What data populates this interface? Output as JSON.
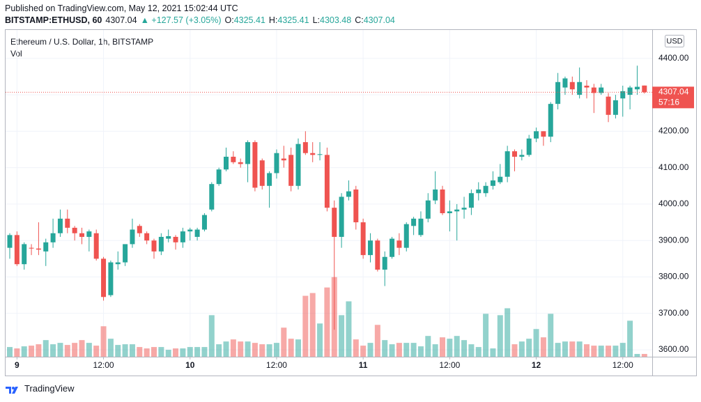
{
  "header": {
    "published": "Published on TradingView.com, May 12, 2021 15:02:44 UTC",
    "symbol": "BITSTAMP:ETHUSD, 60",
    "last": "4307.04",
    "change": "▲ +127.57 (+3.05%)",
    "ohlc": [
      {
        "label": "O:",
        "value": "4325.41"
      },
      {
        "label": "H:",
        "value": "4325.41"
      },
      {
        "label": "L:",
        "value": "4303.48"
      },
      {
        "label": "C:",
        "value": "4307.04"
      }
    ]
  },
  "chart_data": {
    "type": "candlestick",
    "title": "Ethereum / U.S. Dollar, 1h, BITSTAMP",
    "volume_label": "Vol",
    "currency": "USD",
    "price_label": "4307.04",
    "countdown": "57:16",
    "up_color": "#26a69a",
    "down_color": "#ef5350",
    "grid": true,
    "categories": [
      null,
      "9",
      null,
      null,
      null,
      null,
      null,
      null,
      null,
      null,
      null,
      null,
      null,
      "12:00",
      null,
      null,
      null,
      null,
      null,
      null,
      null,
      null,
      null,
      null,
      null,
      "10",
      null,
      null,
      null,
      null,
      null,
      null,
      null,
      null,
      null,
      null,
      null,
      "12:00",
      null,
      null,
      null,
      null,
      null,
      null,
      null,
      null,
      null,
      null,
      null,
      "11",
      null,
      null,
      null,
      null,
      null,
      null,
      null,
      null,
      null,
      null,
      null,
      "12:00",
      null,
      null,
      null,
      null,
      null,
      null,
      null,
      null,
      null,
      null,
      null,
      "12",
      null,
      null,
      null,
      null,
      null,
      null,
      null,
      null,
      null,
      null,
      null,
      "12:00",
      null,
      null,
      null
    ],
    "open": [
      3880,
      3915,
      3835,
      3880,
      3878,
      3870,
      3895,
      3920,
      3960,
      3935,
      3920,
      3910,
      3920,
      3850,
      3750,
      3835,
      3840,
      3890,
      3940,
      3920,
      3900,
      3870,
      3905,
      3910,
      3895,
      3925,
      3910,
      3930,
      3985,
      4055,
      4095,
      4130,
      4115,
      4110,
      4170,
      4120,
      4050,
      4085,
      4125,
      4135,
      4050,
      4170,
      4140,
      4135,
      4135,
      3990,
      3910,
      4020,
      4040,
      3950,
      3860,
      3900,
      3820,
      3855,
      3900,
      3880,
      3940,
      3915,
      3960,
      4010,
      4040,
      3975,
      3980,
      3985,
      3990,
      4030,
      4030,
      4050,
      4060,
      4075,
      4145,
      4130,
      4135,
      4180,
      4200,
      4185,
      4275,
      4320,
      4335,
      4300,
      4325,
      4320,
      4305,
      4295,
      4245,
      4290,
      4300,
      4315,
      4325.41
    ],
    "high": [
      3920,
      3925,
      3895,
      3890,
      3950,
      3905,
      3960,
      3985,
      3985,
      3940,
      3935,
      3930,
      3930,
      3855,
      3845,
      3870,
      3890,
      3960,
      3945,
      3925,
      3905,
      3920,
      3930,
      3915,
      3935,
      3935,
      3935,
      3975,
      4060,
      4100,
      4155,
      4145,
      4125,
      4175,
      4175,
      4125,
      4090,
      4150,
      4160,
      4155,
      4180,
      4200,
      4170,
      4170,
      4155,
      4010,
      4030,
      4065,
      4050,
      3960,
      3920,
      3905,
      3870,
      3910,
      3920,
      3950,
      3965,
      3980,
      4030,
      4090,
      4050,
      4010,
      4000,
      4020,
      4040,
      4060,
      4060,
      4090,
      4110,
      4160,
      4150,
      4150,
      4190,
      4210,
      4200,
      4280,
      4360,
      4350,
      4350,
      4375,
      4340,
      4330,
      4330,
      4305,
      4300,
      4325,
      4325,
      4380,
      4325.41
    ],
    "low": [
      3850,
      3830,
      3820,
      3860,
      3860,
      3830,
      3880,
      3910,
      3920,
      3900,
      3890,
      3870,
      3845,
      3735,
      3745,
      3820,
      3830,
      3880,
      3910,
      3890,
      3850,
      3860,
      3895,
      3875,
      3880,
      3900,
      3900,
      3925,
      3980,
      4050,
      4090,
      4110,
      4100,
      4060,
      4035,
      4040,
      3990,
      4070,
      4100,
      4035,
      4040,
      4135,
      4115,
      4120,
      3980,
      3655,
      3880,
      4010,
      3930,
      3850,
      3840,
      3815,
      3775,
      3850,
      3860,
      3870,
      3915,
      3910,
      3950,
      4000,
      3970,
      3925,
      3900,
      3960,
      3970,
      4010,
      4020,
      4040,
      4055,
      4060,
      4090,
      4120,
      4130,
      4170,
      4160,
      4170,
      4260,
      4300,
      4300,
      4290,
      4290,
      4250,
      4300,
      4225,
      4235,
      4240,
      4260,
      4300,
      4303.48
    ],
    "close": [
      3915,
      3835,
      3890,
      3878,
      3875,
      3895,
      3920,
      3960,
      3935,
      3920,
      3910,
      3925,
      3850,
      3745,
      3840,
      3840,
      3890,
      3930,
      3920,
      3900,
      3870,
      3910,
      3912,
      3895,
      3925,
      3930,
      3930,
      3970,
      4055,
      4095,
      4130,
      4115,
      4110,
      4170,
      4045,
      4050,
      4085,
      4140,
      4120,
      4050,
      4165,
      4140,
      4135,
      4137,
      3990,
      3910,
      4020,
      4035,
      3950,
      3860,
      3900,
      3820,
      3855,
      3905,
      3880,
      3945,
      3960,
      3960,
      4010,
      4040,
      3975,
      3980,
      3985,
      3990,
      4030,
      4040,
      4050,
      4065,
      4075,
      4145,
      4130,
      4135,
      4180,
      4200,
      4185,
      4275,
      4335,
      4345,
      4315,
      4335,
      4320,
      4305,
      4320,
      4245,
      4285,
      4310,
      4320,
      4322,
      4307.04
    ],
    "volume": [
      14,
      12,
      15,
      16,
      18,
      24,
      18,
      20,
      17,
      20,
      24,
      20,
      16,
      44,
      26,
      17,
      18,
      18,
      14,
      12,
      14,
      14,
      10,
      12,
      12,
      14,
      14,
      14,
      60,
      18,
      22,
      25,
      22,
      22,
      20,
      18,
      18,
      20,
      42,
      26,
      25,
      88,
      92,
      48,
      100,
      115,
      60,
      80,
      25,
      16,
      20,
      46,
      24,
      18,
      20,
      20,
      20,
      15,
      30,
      18,
      28,
      26,
      30,
      24,
      18,
      14,
      62,
      12,
      60,
      70,
      18,
      22,
      26,
      40,
      28,
      62,
      20,
      22,
      22,
      22,
      18,
      16,
      16,
      16,
      16,
      20,
      52,
      4,
      4
    ],
    "ylim": [
      3581,
      4478
    ],
    "volume_ylim": [
      0,
      472
    ],
    "yticks": [
      {
        "value": 3600,
        "label": "3600.00"
      },
      {
        "value": 3700,
        "label": "3700.00"
      },
      {
        "value": 3800,
        "label": "3800.00"
      },
      {
        "value": 3900,
        "label": "3900.00"
      },
      {
        "value": 4000,
        "label": "4000.00"
      },
      {
        "value": 4100,
        "label": "4100.00"
      },
      {
        "value": 4200,
        "label": "4200.00"
      },
      {
        "value": 4300,
        "label": "4300.00"
      },
      {
        "value": 4400,
        "label": "4400.00"
      }
    ]
  },
  "footer": {
    "brand": "TradingView"
  }
}
